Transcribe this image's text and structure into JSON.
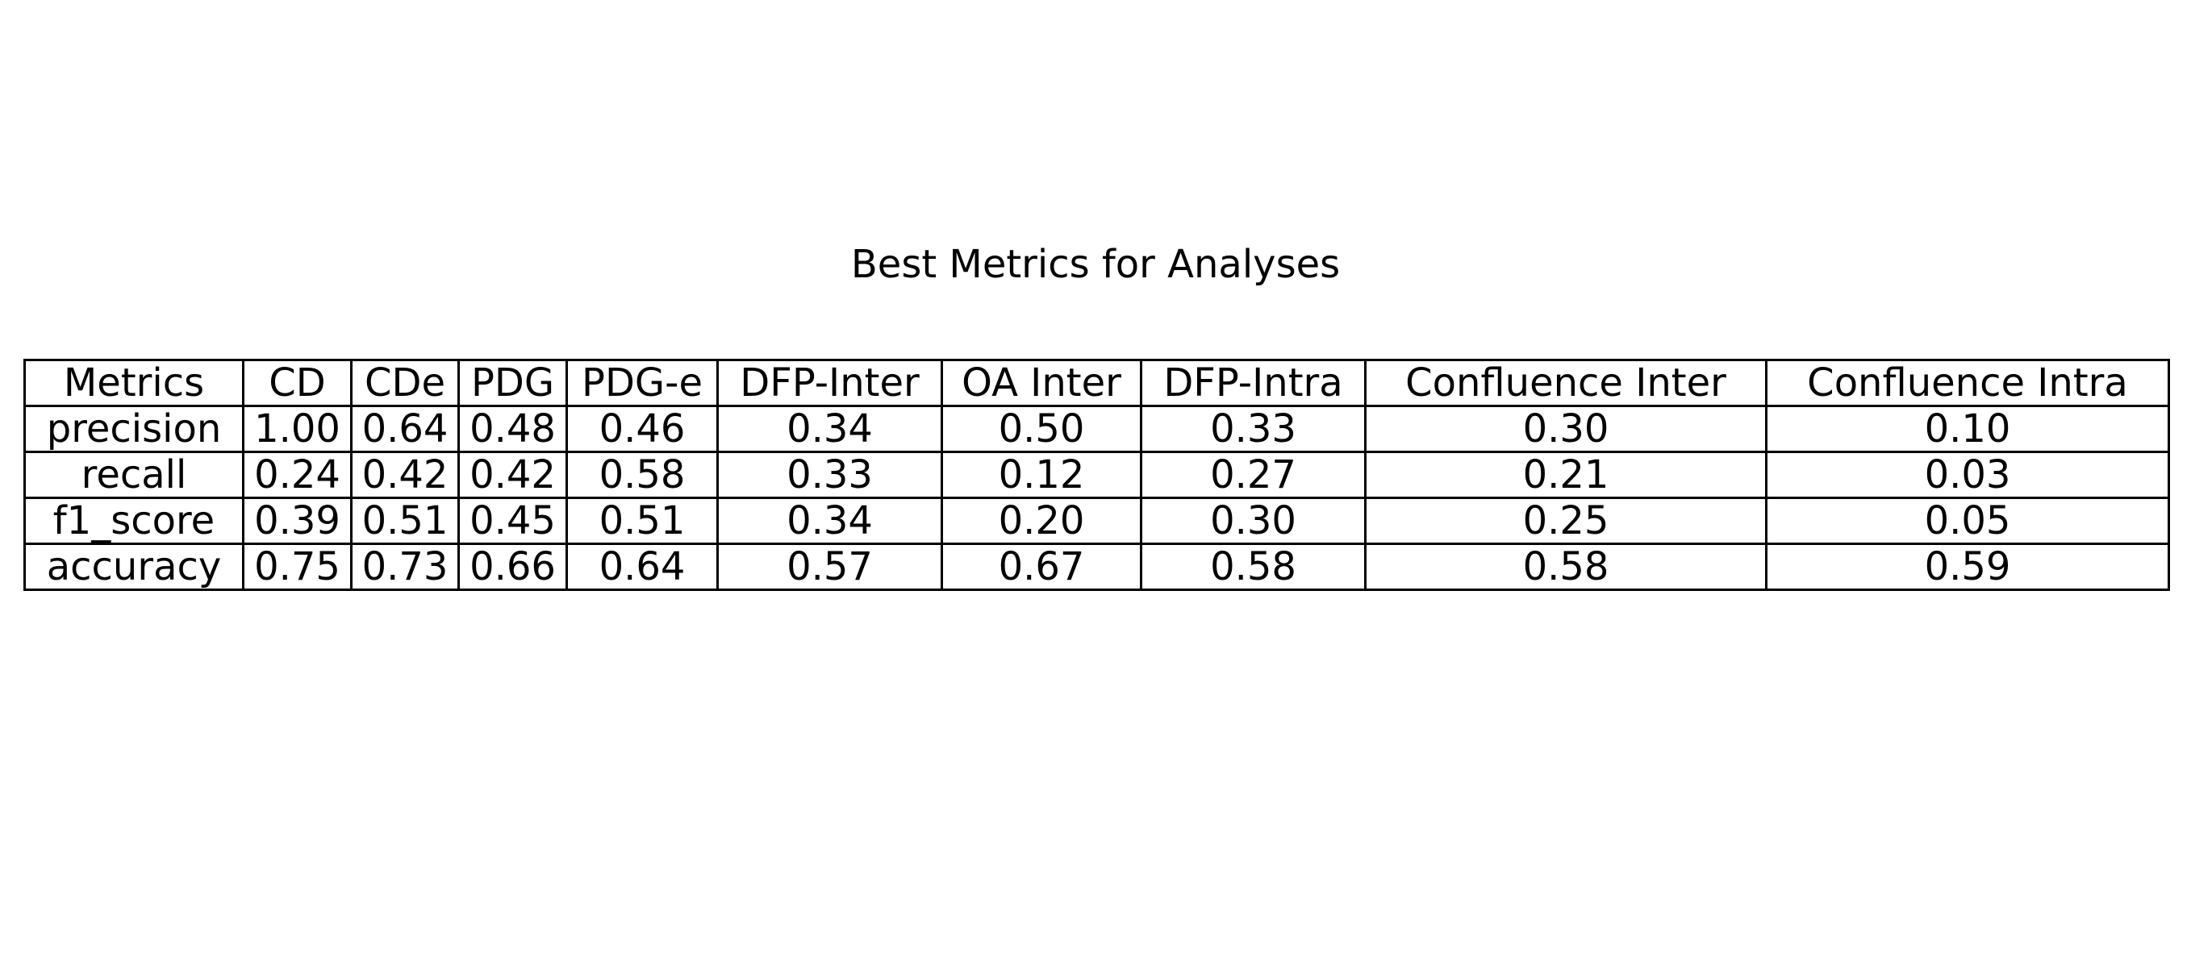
{
  "chart_data": {
    "type": "table",
    "title": "Best Metrics for Analyses",
    "columns": [
      "Metrics",
      "CD",
      "CDe",
      "PDG",
      "PDG-e",
      "DFP-Inter",
      "OA Inter",
      "DFP-Intra",
      "Confluence Inter",
      "Confluence Intra"
    ],
    "rows": [
      [
        "precision",
        "1.00",
        "0.64",
        "0.48",
        "0.46",
        "0.34",
        "0.50",
        "0.33",
        "0.30",
        "0.10"
      ],
      [
        "recall",
        "0.24",
        "0.42",
        "0.42",
        "0.58",
        "0.33",
        "0.12",
        "0.27",
        "0.21",
        "0.03"
      ],
      [
        "f1_score",
        "0.39",
        "0.51",
        "0.45",
        "0.51",
        "0.34",
        "0.20",
        "0.30",
        "0.25",
        "0.05"
      ],
      [
        "accuracy",
        "0.75",
        "0.73",
        "0.66",
        "0.64",
        "0.57",
        "0.67",
        "0.58",
        "0.58",
        "0.59"
      ]
    ]
  }
}
